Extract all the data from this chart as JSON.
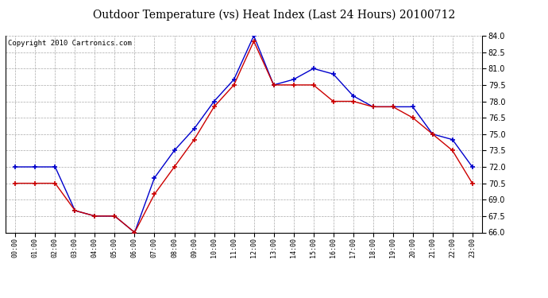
{
  "title": "Outdoor Temperature (vs) Heat Index (Last 24 Hours) 20100712",
  "copyright": "Copyright 2010 Cartronics.com",
  "hours": [
    "00:00",
    "01:00",
    "02:00",
    "03:00",
    "04:00",
    "05:00",
    "06:00",
    "07:00",
    "08:00",
    "09:00",
    "10:00",
    "11:00",
    "12:00",
    "13:00",
    "14:00",
    "15:00",
    "16:00",
    "17:00",
    "18:00",
    "19:00",
    "20:00",
    "21:00",
    "22:00",
    "23:00"
  ],
  "temp": [
    72.0,
    72.0,
    72.0,
    68.0,
    67.5,
    67.5,
    66.0,
    71.0,
    73.5,
    75.5,
    78.0,
    80.0,
    84.0,
    79.5,
    80.0,
    81.0,
    80.5,
    78.5,
    77.5,
    77.5,
    77.5,
    75.0,
    74.5,
    72.0
  ],
  "heat_index": [
    70.5,
    70.5,
    70.5,
    68.0,
    67.5,
    67.5,
    66.0,
    69.5,
    72.0,
    74.5,
    77.5,
    79.5,
    83.5,
    79.5,
    79.5,
    79.5,
    78.0,
    78.0,
    77.5,
    77.5,
    76.5,
    75.0,
    73.5,
    70.5
  ],
  "temp_color": "#0000cc",
  "heat_color": "#cc0000",
  "bg_color": "#ffffff",
  "plot_bg": "#ffffff",
  "grid_color": "#aaaaaa",
  "ylim_min": 66.0,
  "ylim_max": 84.0,
  "yticks": [
    66.0,
    67.5,
    69.0,
    70.5,
    72.0,
    73.5,
    75.0,
    76.5,
    78.0,
    79.5,
    81.0,
    82.5,
    84.0
  ],
  "title_fontsize": 10,
  "copyright_fontsize": 6.5
}
